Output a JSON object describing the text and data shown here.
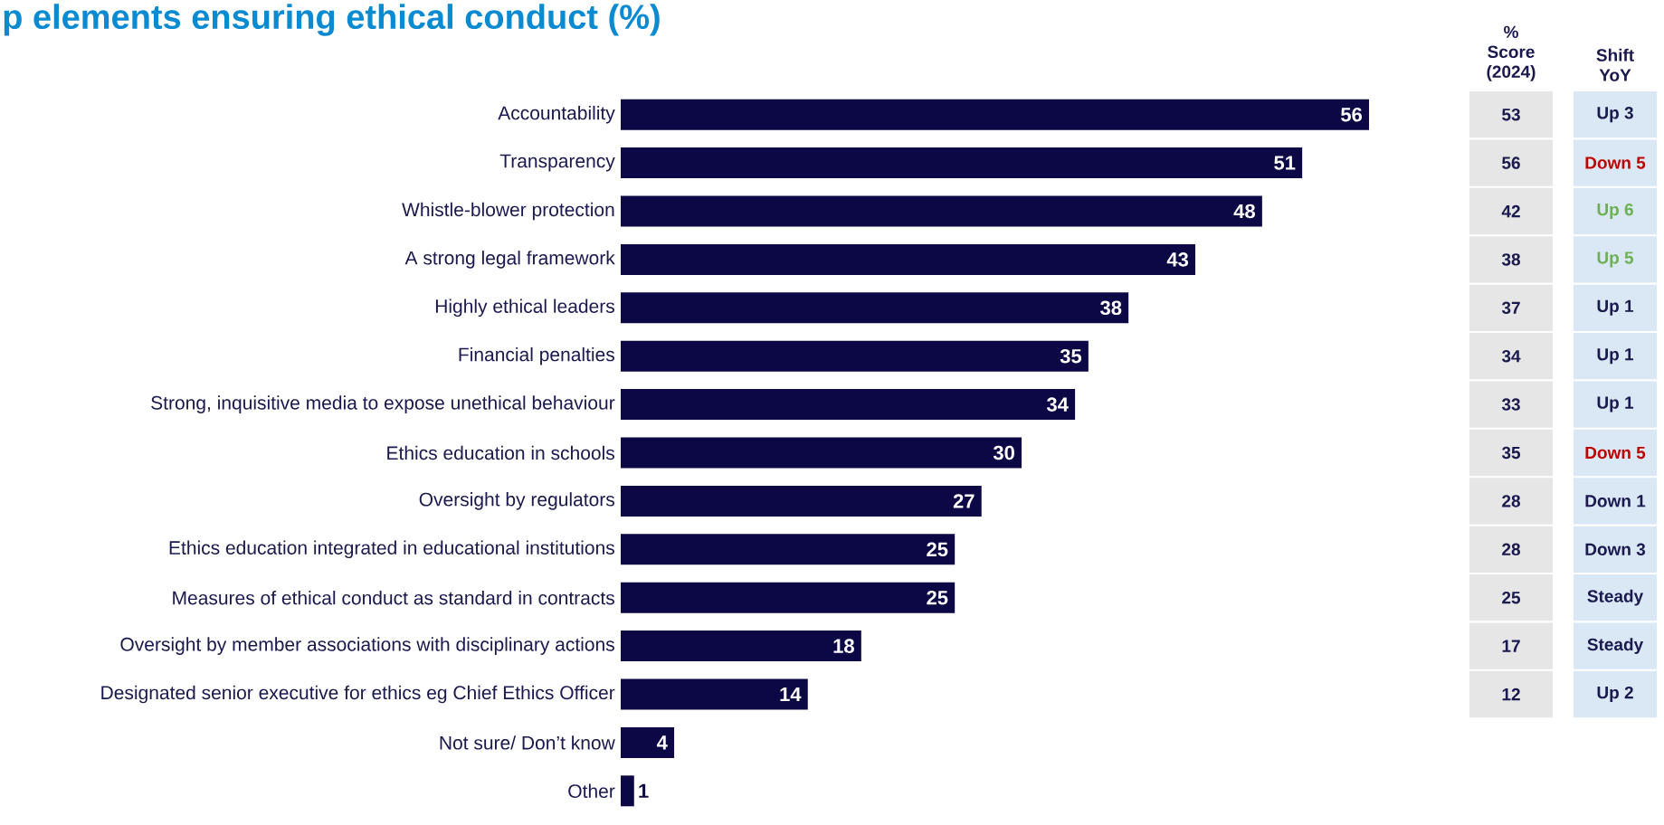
{
  "chart_data": [
    {
      "type": "bar",
      "orientation": "horizontal",
      "title": "p elements ensuring ethical conduct (%)",
      "color": "#0c0846",
      "data_labels": true,
      "categories": [
        "Accountability",
        "Transparency",
        "Whistle-blower protection",
        "A strong legal framework",
        "Highly ethical leaders",
        "Financial penalties",
        "Strong, inquisitive media to expose unethical behaviour",
        "Ethics education in schools",
        "Oversight by regulators",
        "Ethics education integrated in educational institutions",
        "Measures of ethical conduct as standard in contracts",
        "Oversight by member associations with disciplinary actions",
        "Designated senior executive for ethics eg Chief Ethics Officer",
        "Not sure/ Don’t know",
        "Other"
      ],
      "values": [
        56,
        51,
        48,
        43,
        38,
        35,
        34,
        30,
        27,
        25,
        25,
        18,
        14,
        4,
        1
      ]
    },
    {
      "type": "other",
      "title": "% Score (2024)",
      "annotations": [
        "53",
        "56",
        "42",
        "38",
        "37",
        "34",
        "33",
        "35",
        "28",
        "28",
        "25",
        "17",
        "12"
      ]
    },
    {
      "type": "other",
      "title": "Shift YoY",
      "annotations": [
        "Up 3",
        "Down 5",
        "Up 6",
        "Up 5",
        "Up 1",
        "Up 1",
        "Up 1",
        "Down 5",
        "Down 1",
        "Down 3",
        "Steady",
        "Steady",
        "Up 2"
      ],
      "colors": [
        "#1b1a4e",
        "#c00000",
        "#6db052",
        "#6db052",
        "#1b1a4e",
        "#1b1a4e",
        "#1b1a4e",
        "#c00000",
        "#1b1a4e",
        "#1b1a4e",
        "#1b1a4e",
        "#1b1a4e",
        "#1b1a4e"
      ]
    }
  ]
}
